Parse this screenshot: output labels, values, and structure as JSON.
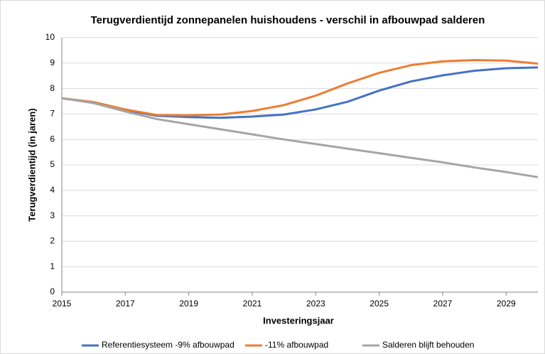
{
  "chart_data": {
    "type": "line",
    "title": "Terugverdientijd zonnepanelen huishoudens - verschil in afbouwpad salderen",
    "x_label": "Investeringsjaar",
    "y_label": "Terugverdientijd (in jaren)",
    "x": [
      2015,
      2016,
      2017,
      2018,
      2019,
      2020,
      2021,
      2022,
      2023,
      2024,
      2025,
      2026,
      2027,
      2028,
      2029,
      2030
    ],
    "series": [
      {
        "name": "Referentiesysteem -9% afbouwpad",
        "color": "#4472c4",
        "values": [
          7.62,
          7.45,
          7.15,
          6.93,
          6.88,
          6.85,
          6.9,
          6.98,
          7.18,
          7.48,
          7.92,
          8.28,
          8.52,
          8.7,
          8.8,
          8.83
        ]
      },
      {
        "name": "-11% afbouwpad",
        "color": "#ed7d31",
        "values": [
          7.62,
          7.47,
          7.18,
          6.96,
          6.95,
          6.98,
          7.12,
          7.35,
          7.72,
          8.2,
          8.62,
          8.92,
          9.07,
          9.12,
          9.1,
          8.98
        ]
      },
      {
        "name": "Salderen blijft behouden",
        "color": "#a5a5a5",
        "values": [
          7.62,
          7.43,
          7.1,
          6.8,
          6.6,
          6.4,
          6.2,
          6.0,
          5.82,
          5.64,
          5.46,
          5.28,
          5.1,
          4.9,
          4.72,
          4.52
        ]
      }
    ],
    "xlim": [
      2015,
      2030
    ],
    "xticks": [
      2015,
      2017,
      2019,
      2021,
      2023,
      2025,
      2027,
      2029
    ],
    "ylim": [
      0,
      10
    ],
    "yticks": [
      0,
      1,
      2,
      3,
      4,
      5,
      6,
      7,
      8,
      9,
      10
    ],
    "grid": true,
    "legend": "bottom"
  }
}
